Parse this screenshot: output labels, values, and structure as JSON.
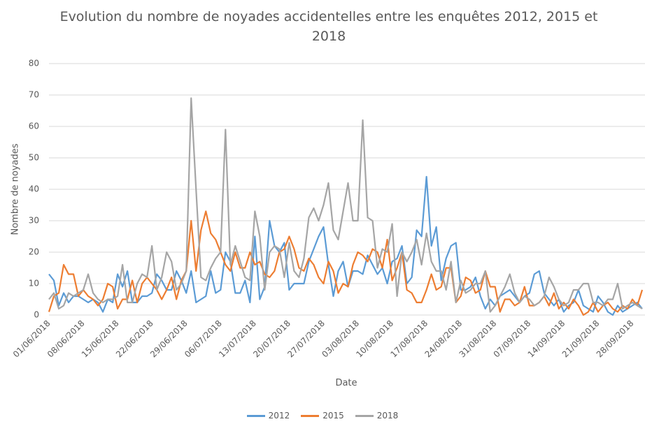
{
  "chart_data": {
    "type": "line",
    "title": "Evolution du nombre de noyades accidentelles entre les enquêtes 2012, 2015 et 2018",
    "x_label": "Date",
    "y_label": "Nombre de noyades",
    "categories": [
      "01/06/2018",
      null,
      null,
      null,
      null,
      null,
      null,
      "08/06/2018",
      null,
      null,
      null,
      null,
      null,
      null,
      "15/06/2018",
      null,
      null,
      null,
      null,
      null,
      null,
      "22/06/2018",
      null,
      null,
      null,
      null,
      null,
      null,
      "29/06/2018",
      null,
      null,
      null,
      null,
      null,
      null,
      "06/07/2018",
      null,
      null,
      null,
      null,
      null,
      null,
      "13/07/2018",
      null,
      null,
      null,
      null,
      null,
      null,
      "20/07/2018",
      null,
      null,
      null,
      null,
      null,
      null,
      "27/07/2018",
      null,
      null,
      null,
      null,
      null,
      null,
      "03/08/2018",
      null,
      null,
      null,
      null,
      null,
      null,
      "10/08/2018",
      null,
      null,
      null,
      null,
      null,
      null,
      "17/08/2018",
      null,
      null,
      null,
      null,
      null,
      null,
      "24/08/2018",
      null,
      null,
      null,
      null,
      null,
      null,
      "31/08/2018",
      null,
      null,
      null,
      null,
      null,
      null,
      "07/09/2018",
      null,
      null,
      null,
      null,
      null,
      null,
      "14/09/2018",
      null,
      null,
      null,
      null,
      null,
      null,
      "21/09/2018",
      null,
      null,
      null,
      null,
      null,
      null,
      "28/09/2018",
      null,
      null
    ],
    "series": [
      {
        "name": "2012",
        "color": "#5b9bd5",
        "values": [
          13,
          11,
          3,
          7,
          4,
          6,
          6,
          5,
          4,
          5,
          4,
          1,
          5,
          4,
          13,
          9,
          14,
          4,
          4,
          6,
          6,
          7,
          13,
          11,
          8,
          8,
          14,
          11,
          7,
          14,
          4,
          5,
          6,
          14,
          7,
          8,
          20,
          17,
          7,
          7,
          11,
          4,
          25,
          5,
          9,
          30,
          22,
          20,
          23,
          8,
          10,
          10,
          10,
          17,
          21,
          25,
          28,
          16,
          6,
          14,
          17,
          9,
          14,
          14,
          13,
          19,
          16,
          13,
          15,
          10,
          17,
          18,
          22,
          10,
          12,
          27,
          25,
          44,
          22,
          28,
          11,
          18,
          22,
          23,
          8,
          8,
          9,
          12,
          6,
          2,
          5,
          3,
          6,
          7,
          8,
          6,
          4,
          6,
          7,
          13,
          14,
          7,
          5,
          3,
          5,
          1,
          3,
          4,
          8,
          3,
          2,
          1,
          6,
          4,
          1,
          0,
          3,
          1,
          2,
          3,
          4,
          2
        ]
      },
      {
        "name": "2015",
        "color": "#ed7d31",
        "values": [
          1,
          6,
          7,
          16,
          13,
          13,
          6,
          8,
          6,
          5,
          3,
          5,
          10,
          9,
          2,
          5,
          5,
          11,
          4,
          10,
          12,
          10,
          8,
          5,
          8,
          12,
          5,
          11,
          14,
          30,
          14,
          27,
          33,
          26,
          24,
          20,
          16,
          14,
          20,
          15,
          15,
          20,
          16,
          17,
          13,
          12,
          14,
          20,
          21,
          25,
          21,
          15,
          14,
          18,
          16,
          12,
          10,
          17,
          14,
          7,
          10,
          9,
          16,
          20,
          19,
          17,
          21,
          20,
          15,
          24,
          11,
          15,
          20,
          8,
          7,
          4,
          4,
          8,
          13,
          8,
          9,
          15,
          15,
          4,
          6,
          12,
          11,
          7,
          8,
          14,
          9,
          9,
          1,
          5,
          5,
          3,
          4,
          9,
          3,
          3,
          4,
          6,
          3,
          7,
          2,
          4,
          2,
          5,
          3,
          0,
          1,
          4,
          1,
          3,
          4,
          2,
          1,
          3,
          2,
          5,
          3,
          8
        ]
      },
      {
        "name": "2018",
        "color": "#a5a5a5",
        "values": [
          5,
          7,
          2,
          3,
          7,
          6,
          7,
          8,
          13,
          7,
          5,
          4,
          5,
          5,
          6,
          16,
          4,
          4,
          10,
          13,
          12,
          22,
          8,
          12,
          20,
          17,
          8,
          10,
          14,
          69,
          40,
          12,
          11,
          15,
          18,
          20,
          59,
          16,
          22,
          17,
          12,
          11,
          33,
          25,
          8,
          20,
          22,
          21,
          12,
          23,
          14,
          12,
          18,
          31,
          34,
          30,
          35,
          42,
          27,
          24,
          33,
          42,
          30,
          30,
          62,
          31,
          30,
          15,
          21,
          20,
          29,
          6,
          20,
          17,
          20,
          24,
          16,
          26,
          17,
          14,
          14,
          8,
          17,
          4,
          11,
          7,
          8,
          10,
          10,
          14,
          1,
          3,
          6,
          9,
          13,
          7,
          4,
          6,
          5,
          3,
          4,
          6,
          12,
          9,
          5,
          3,
          4,
          8,
          8,
          10,
          10,
          4,
          4,
          3,
          5,
          5,
          10,
          2,
          3,
          4,
          3,
          2
        ]
      }
    ],
    "ylim": [
      0,
      80
    ],
    "yticks": [
      0,
      10,
      20,
      30,
      40,
      50,
      60,
      70,
      80
    ],
    "grid": true
  }
}
